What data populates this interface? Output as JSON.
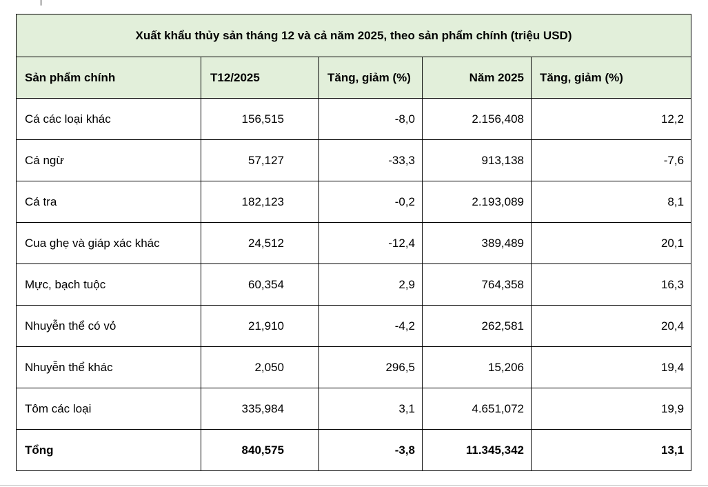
{
  "table": {
    "title": "Xuất khẩu thủy sản tháng 12 và cả năm 2025, theo sản phẩm chính (triệu USD)",
    "header": [
      "Sản phẩm chính",
      "T12/2025",
      "Tăng, giảm (%)",
      "Năm 2025",
      "Tăng, giảm (%)"
    ],
    "rows": [
      [
        "Cá các loại khác",
        "156,515",
        "-8,0",
        "2.156,408",
        "12,2"
      ],
      [
        "Cá ngừ",
        "57,127",
        "-33,3",
        "913,138",
        "-7,6"
      ],
      [
        "Cá tra",
        "182,123",
        "-0,2",
        "2.193,089",
        "8,1"
      ],
      [
        "Cua ghẹ và giáp xác khác",
        "24,512",
        "-12,4",
        "389,489",
        "20,1"
      ],
      [
        "Mực, bạch tuộc",
        "60,354",
        "2,9",
        "764,358",
        "16,3"
      ],
      [
        "Nhuyễn thể có vỏ",
        "21,910",
        "-4,2",
        "262,581",
        "20,4"
      ],
      [
        "Nhuyễn thể khác",
        "2,050",
        "296,5",
        "15,206",
        "19,4"
      ],
      [
        "Tôm các loại",
        "335,984",
        "3,1",
        "4.651,072",
        "19,9"
      ],
      [
        "Tổng",
        "840,575",
        "-3,8",
        "11.345,342",
        "13,1"
      ]
    ]
  }
}
